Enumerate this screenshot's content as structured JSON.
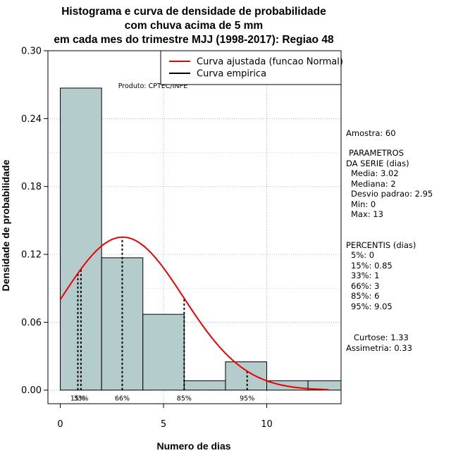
{
  "chart_data": {
    "type": "histogram",
    "title_lines": [
      "Histograma e curva de densidade de probabilidade",
      "com chuva acima de 5 mm",
      "em cada mes do trimestre MJJ (1998-2017): Regiao 48"
    ],
    "xlabel": "Numero de dias",
    "ylabel": "Densidade de probabilidade",
    "xlim": [
      -0.6,
      13.6
    ],
    "ylim": [
      -0.012,
      0.3
    ],
    "x_ticks": [
      0,
      5,
      10
    ],
    "y_ticks": [
      0.0,
      0.06,
      0.12,
      0.18,
      0.24,
      0.3
    ],
    "y_tick_labels": [
      "0.00",
      "0.06",
      "0.12",
      "0.18",
      "0.24",
      "0.30"
    ],
    "grid": true,
    "bins": [
      {
        "start": 0,
        "end": 2,
        "density": 0.267
      },
      {
        "start": 2,
        "end": 4,
        "density": 0.117
      },
      {
        "start": 4,
        "end": 6,
        "density": 0.067
      },
      {
        "start": 6,
        "end": 8,
        "density": 0.0083
      },
      {
        "start": 8,
        "end": 10,
        "density": 0.025
      },
      {
        "start": 10,
        "end": 12,
        "density": 0.0083
      },
      {
        "start": 12,
        "end": 14,
        "density": 0.0083
      }
    ],
    "bar_color": "#b4cccb",
    "normal_curve": {
      "mean": 3.02,
      "sd": 2.95,
      "x_from": 0,
      "x_to": 13,
      "color": "#ee0000"
    },
    "percentile_lines": [
      {
        "label": "15%",
        "x": 0.85
      },
      {
        "label": "33%",
        "x": 1
      },
      {
        "label": "66%",
        "x": 3
      },
      {
        "label": "85%",
        "x": 6
      },
      {
        "label": "95%",
        "x": 9.05
      }
    ],
    "legend": {
      "position": "top-right",
      "items": [
        {
          "label": "Curva ajustada (funcao Normal)",
          "color": "#ee0000"
        },
        {
          "label": "Curva empirica",
          "color": "#000000"
        }
      ]
    },
    "credit": "Produto: CPTEC/INPE"
  },
  "stats_panel": {
    "amostra": "Amostra: 60",
    "param_title_1": "PARAMETROS",
    "param_title_2": "DA SERIE (dias)",
    "params": [
      "Media: 3.02",
      "Mediana: 2",
      "Desvio padrao: 2.95",
      "Min: 0",
      "Max: 13"
    ],
    "perc_title": "PERCENTIS (dias)",
    "percentis": [
      "5%: 0",
      "15%: 0.85",
      "33%: 1",
      "66%: 3",
      "85%: 6",
      "95%: 9.05"
    ],
    "curtose": "Curtose: 1.33",
    "assimetria": "Assimetria: 0.33"
  }
}
